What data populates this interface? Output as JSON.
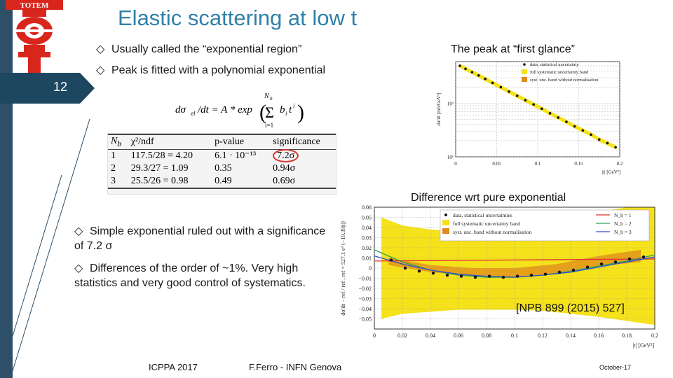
{
  "title": "Elastic scattering at low t",
  "logo_text": "TOTEM",
  "slide_number": "12",
  "bullets_top": [
    "Usually called the “exponential region”",
    "Peak is fitted with a polynomial exponential"
  ],
  "bullets_bottom": [
    "Simple exponential ruled out with a significance of 7.2 σ",
    "Differences of the order of ~1%. Very high statistics and very good control of systematics."
  ],
  "caption_top": "The peak at “first glance”",
  "caption_bottom": "Difference wrt pure exponential",
  "reference": "[NPB 899 (2015) 527]",
  "formula": {
    "lhs": "dσ",
    "lhs_sub": "el",
    "mid": "/dt = A * exp",
    "sum_top": "N",
    "sum_top_sub": "b",
    "sum_bottom": "i=1",
    "term": "b",
    "term_sub": "i",
    "term_var": "t",
    "term_exp": "i"
  },
  "fit_table": {
    "headers": [
      "N",
      "χ²/ndf",
      "p-value",
      "significance"
    ],
    "header_sub": "b",
    "rows": [
      [
        "1",
        "117.5/28 = 4.20",
        "6.1 · 10⁻¹³",
        "7.2σ"
      ],
      [
        "2",
        "29.3/27 = 1.09",
        "0.35",
        "0.94σ"
      ],
      [
        "3",
        "25.5/26 = 0.98",
        "0.49",
        "0.69σ"
      ]
    ],
    "highlight_color": "#d9342b"
  },
  "footer": {
    "conference": "ICPPA 2017",
    "author": "F.Ferro - INFN Genova",
    "date": "October-17"
  },
  "colors": {
    "title": "#2f80a8",
    "sidebar": "#2d5068",
    "slide_number_bg": "#1d4760",
    "band_yellow": "#f5e21a",
    "band_orange": "#e08a1a",
    "nb1": "#e03030",
    "nb2": "#30a050",
    "nb3": "#3050d0"
  },
  "chart_data": [
    {
      "type": "line",
      "xlabel": "|t| [GeV²]",
      "ylabel": "dσ/dt [mb/GeV²]",
      "yscale": "log",
      "xlim": [
        0,
        0.2
      ],
      "ylim": [
        10,
        600
      ],
      "x_ticks": [
        "0",
        "0.05",
        "0.1",
        "0.15",
        "0.2"
      ],
      "y_ticks": [
        "10²",
        "10¹"
      ],
      "y_tick_values": [
        100,
        10
      ],
      "legend": [
        "data, statistical uncertainty",
        "full systematic uncertainty band",
        "syst. unc. band without normalisation"
      ],
      "legend_position": "top-right",
      "grid": true,
      "series": [
        {
          "x": [
            0.005,
            0.012,
            0.02,
            0.028,
            0.036,
            0.045,
            0.055,
            0.065,
            0.075,
            0.085,
            0.095,
            0.105,
            0.115,
            0.125,
            0.135,
            0.145,
            0.155,
            0.165,
            0.175,
            0.185,
            0.195
          ],
          "y": [
            500,
            440,
            380,
            330,
            285,
            240,
            200,
            165,
            138,
            114,
            95,
            79,
            65,
            54,
            45,
            37,
            31,
            26,
            21,
            18,
            15
          ]
        }
      ]
    },
    {
      "type": "line",
      "xlabel": "|t| [GeV²]",
      "ylabel": "dσ/dt − ref / ref , ref = 527.1 e^{−19.39|t|}",
      "xlim": [
        0,
        0.2
      ],
      "ylim": [
        -0.06,
        0.06
      ],
      "x_ticks": [
        "0",
        "0.02",
        "0.04",
        "0.06",
        "0.08",
        "0.1",
        "0.12",
        "0.14",
        "0.16",
        "0.18",
        "0.2"
      ],
      "y_ticks": [
        "−0.05",
        "−0.04",
        "−0.03",
        "−0.02",
        "−0.01",
        "0",
        "0.01",
        "0.02",
        "0.03",
        "0.04",
        "0.05",
        "0.06"
      ],
      "legend": [
        "data, statistical uncertainties",
        "full systematic uncertainty band",
        "syst. unc. band without normalisation",
        "N_b = 1",
        "N_b = 2",
        "N_b = 3"
      ],
      "legend_position": "top",
      "grid": true,
      "band_full": {
        "x": [
          0.005,
          0.02,
          0.04,
          0.06,
          0.08,
          0.1,
          0.12,
          0.14,
          0.16,
          0.18,
          0.2
        ],
        "upper": [
          0.05,
          0.042,
          0.038,
          0.036,
          0.036,
          0.038,
          0.042,
          0.048,
          0.055,
          0.06,
          0.06
        ],
        "lower": [
          -0.05,
          -0.045,
          -0.043,
          -0.041,
          -0.041,
          -0.041,
          -0.042,
          -0.045,
          -0.048,
          -0.052,
          -0.056
        ]
      },
      "band_norm": {
        "x": [
          0.01,
          0.04,
          0.07,
          0.1,
          0.13,
          0.16,
          0.19
        ],
        "upper": [
          0.01,
          0.003,
          0.0,
          0.0,
          0.004,
          0.012,
          0.018
        ],
        "lower": [
          0.003,
          -0.004,
          -0.008,
          -0.009,
          -0.006,
          0.002,
          0.006
        ]
      },
      "series": [
        {
          "name": "data",
          "x": [
            0.012,
            0.022,
            0.032,
            0.042,
            0.052,
            0.062,
            0.072,
            0.082,
            0.092,
            0.102,
            0.112,
            0.122,
            0.132,
            0.142,
            0.152,
            0.162,
            0.172,
            0.182,
            0.192
          ],
          "y": [
            0.008,
            0.0,
            -0.003,
            -0.005,
            -0.007,
            -0.008,
            -0.009,
            -0.008,
            -0.009,
            -0.008,
            -0.007,
            -0.006,
            -0.004,
            -0.002,
            0.001,
            0.004,
            0.006,
            0.009,
            0.011
          ]
        },
        {
          "name": "N_b = 1",
          "x": [
            0.0,
            0.05,
            0.1,
            0.15,
            0.2
          ],
          "y": [
            0.007,
            0.0075,
            0.008,
            0.0085,
            0.009
          ]
        },
        {
          "name": "N_b = 2",
          "x": [
            0.0,
            0.02,
            0.04,
            0.06,
            0.08,
            0.1,
            0.12,
            0.14,
            0.16,
            0.18,
            0.2
          ],
          "y": [
            0.018,
            0.006,
            -0.002,
            -0.007,
            -0.009,
            -0.009,
            -0.007,
            -0.003,
            0.002,
            0.007,
            0.013
          ]
        },
        {
          "name": "N_b = 3",
          "x": [
            0.0,
            0.02,
            0.04,
            0.06,
            0.08,
            0.1,
            0.12,
            0.14,
            0.16,
            0.18,
            0.2
          ],
          "y": [
            0.012,
            0.004,
            -0.002,
            -0.006,
            -0.008,
            -0.009,
            -0.007,
            -0.004,
            0.001,
            0.006,
            0.011
          ]
        }
      ]
    }
  ]
}
